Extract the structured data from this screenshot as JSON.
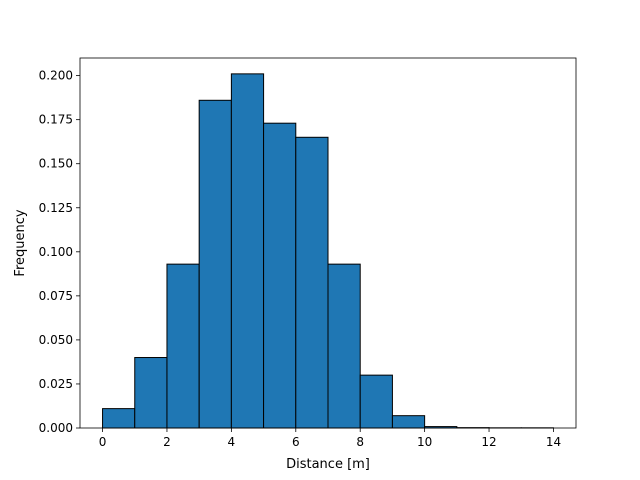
{
  "chart_data": {
    "type": "bar",
    "xlabel": "Distance [m]",
    "ylabel": "Frequency",
    "xlim": [
      -0.7,
      14.7
    ],
    "ylim": [
      0,
      0.21
    ],
    "grid": false,
    "bar_color": "#1f77b4",
    "edge_color": "#000000",
    "bins": [
      {
        "x0": 0,
        "x1": 1,
        "value": 0.011
      },
      {
        "x0": 1,
        "x1": 2,
        "value": 0.04
      },
      {
        "x0": 2,
        "x1": 3,
        "value": 0.093
      },
      {
        "x0": 3,
        "x1": 4,
        "value": 0.186
      },
      {
        "x0": 4,
        "x1": 5,
        "value": 0.201
      },
      {
        "x0": 5,
        "x1": 6,
        "value": 0.173
      },
      {
        "x0": 6,
        "x1": 7,
        "value": 0.165
      },
      {
        "x0": 7,
        "x1": 8,
        "value": 0.093
      },
      {
        "x0": 8,
        "x1": 9,
        "value": 0.03
      },
      {
        "x0": 9,
        "x1": 10,
        "value": 0.007
      },
      {
        "x0": 10,
        "x1": 11,
        "value": 0.0008
      },
      {
        "x0": 11,
        "x1": 12,
        "value": 0.0002
      },
      {
        "x0": 12,
        "x1": 13,
        "value": 0.0001
      },
      {
        "x0": 13,
        "x1": 14,
        "value": 0.0001
      }
    ],
    "xticks": [
      {
        "value": 0,
        "label": "0"
      },
      {
        "value": 2,
        "label": "2"
      },
      {
        "value": 4,
        "label": "4"
      },
      {
        "value": 6,
        "label": "6"
      },
      {
        "value": 8,
        "label": "8"
      },
      {
        "value": 10,
        "label": "10"
      },
      {
        "value": 12,
        "label": "12"
      },
      {
        "value": 14,
        "label": "14"
      }
    ],
    "yticks": [
      {
        "value": 0.0,
        "label": "0.000"
      },
      {
        "value": 0.025,
        "label": "0.025"
      },
      {
        "value": 0.05,
        "label": "0.050"
      },
      {
        "value": 0.075,
        "label": "0.075"
      },
      {
        "value": 0.1,
        "label": "0.100"
      },
      {
        "value": 0.125,
        "label": "0.125"
      },
      {
        "value": 0.15,
        "label": "0.150"
      },
      {
        "value": 0.175,
        "label": "0.175"
      },
      {
        "value": 0.2,
        "label": "0.200"
      }
    ]
  }
}
